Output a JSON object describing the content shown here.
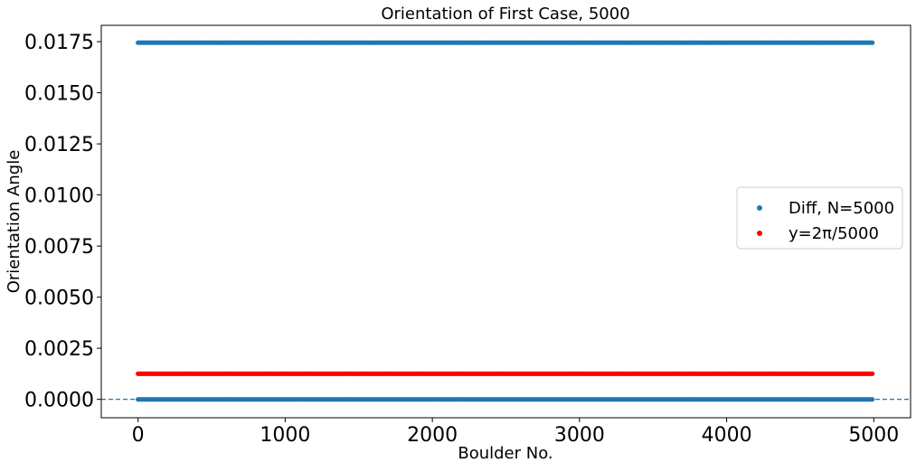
{
  "chart_data": {
    "type": "scatter",
    "title": "Orientation of First Case, 5000",
    "xlabel": "Boulder No.",
    "ylabel": "Orientation Angle",
    "xlim": [
      -250,
      5250
    ],
    "ylim": [
      -0.0009,
      0.0183
    ],
    "x_ticks": [
      0,
      1000,
      2000,
      3000,
      4000,
      5000
    ],
    "x_tick_labels": [
      "0",
      "1000",
      "2000",
      "3000",
      "4000",
      "5000"
    ],
    "y_ticks": [
      0.0,
      0.0025,
      0.005,
      0.0075,
      0.01,
      0.0125,
      0.015,
      0.0175
    ],
    "y_tick_labels": [
      "0.0000",
      "0.0025",
      "0.0050",
      "0.0075",
      "0.0100",
      "0.0125",
      "0.0150",
      "0.0175"
    ],
    "grid": false,
    "legend_position": "center-right",
    "reference_line": {
      "y": 0,
      "style": "dashed",
      "color": "#1f77b4"
    },
    "series": [
      {
        "name": "Diff, N=5000",
        "color": "#1f77b4",
        "x_range": [
          0,
          4999
        ],
        "levels": [
          0.0,
          0.01745
        ],
        "description_values": "points alternate between ~0 and ~0.01745 across all boulder numbers"
      },
      {
        "name": "y=2π/5000",
        "color": "#ff0000",
        "x_range": [
          0,
          4999
        ],
        "levels": [
          0.0012566
        ]
      }
    ]
  }
}
